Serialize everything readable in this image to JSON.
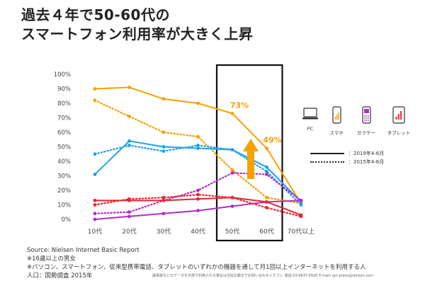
{
  "title": {
    "line1": "過去４年で50-60代の",
    "line2": "スマートフォン利用率が大きく上昇"
  },
  "legend": {
    "devices": [
      {
        "label": "PC",
        "icon": "pc-icon",
        "color": "#1fa2e8"
      },
      {
        "label": "スマホ",
        "icon": "smartphone-icon",
        "color": "#f5a100"
      },
      {
        "label": "ガラケー",
        "icon": "feature-phone-icon",
        "color": "#b02fc4"
      },
      {
        "label": "タブレット",
        "icon": "tablet-icon",
        "color": "#e8262e"
      }
    ],
    "solid_label": "：2019年4-6月",
    "dotted_label": "：2015年4-6月"
  },
  "source": {
    "line1": "Source: Nielsen Internet Basic Report",
    "line2": "※16歳以上の男女",
    "line3": "※パソコン、スマートフォン、従来型携帯電話、タブレットのいずれかの機器を通して月1回以上インターネットを利用する人",
    "line4": "人口：国勢調査 2015年"
  },
  "footer": "議事録などのデータを外部で利用される場合は当社広報までお問い合わせください  電話 03-6837-6500  E-mail: jpn.press@nielsen.com",
  "chart_data": {
    "type": "line",
    "categories": [
      "10代",
      "20代",
      "30代",
      "40代",
      "50代",
      "60代",
      "70代以上"
    ],
    "yticks": [
      "0%",
      "10%",
      "20%",
      "30%",
      "40%",
      "50%",
      "60%",
      "70%",
      "80%",
      "90%",
      "100%"
    ],
    "ylim": [
      0,
      100
    ],
    "highlight_categories": [
      "50代",
      "60代"
    ],
    "annotations": [
      {
        "text": "73%",
        "category": "50代",
        "value": 73,
        "color": "#f5a100"
      },
      {
        "text": "49%",
        "category": "60代",
        "value": 49,
        "color": "#f5a100"
      }
    ],
    "series": [
      {
        "name": "スマホ",
        "period": "2019年4-6月",
        "style": "solid",
        "color": "#f5a100",
        "values": [
          90,
          91,
          83,
          80,
          73,
          49,
          11
        ]
      },
      {
        "name": "スマホ",
        "period": "2015年4-6月",
        "style": "dotted",
        "color": "#f5a100",
        "values": [
          82,
          71,
          60,
          57,
          34,
          15,
          11
        ]
      },
      {
        "name": "PC",
        "period": "2019年4-6月",
        "style": "solid",
        "color": "#1fa2e8",
        "values": [
          31,
          54,
          50,
          49,
          48,
          36,
          12
        ]
      },
      {
        "name": "PC",
        "period": "2015年4-6月",
        "style": "dotted",
        "color": "#1fa2e8",
        "values": [
          45,
          51,
          47,
          51,
          48,
          33,
          10
        ]
      },
      {
        "name": "ガラケー",
        "period": "2019年4-6月",
        "style": "solid",
        "color": "#b02fc4",
        "values": [
          0,
          2,
          4,
          6,
          9,
          12,
          13
        ]
      },
      {
        "name": "ガラケー",
        "period": "2015年4-6月",
        "style": "dotted",
        "color": "#b02fc4",
        "values": [
          4,
          5,
          13,
          20,
          32,
          31,
          13
        ]
      },
      {
        "name": "タブレット",
        "period": "2019年4-6月",
        "style": "solid",
        "color": "#e8262e",
        "values": [
          13,
          13,
          13,
          14,
          15,
          12,
          3
        ]
      },
      {
        "name": "タブレット",
        "period": "2015年4-6月",
        "style": "dotted",
        "color": "#e8262e",
        "values": [
          10,
          14,
          15,
          17,
          15,
          8,
          2
        ]
      }
    ]
  }
}
